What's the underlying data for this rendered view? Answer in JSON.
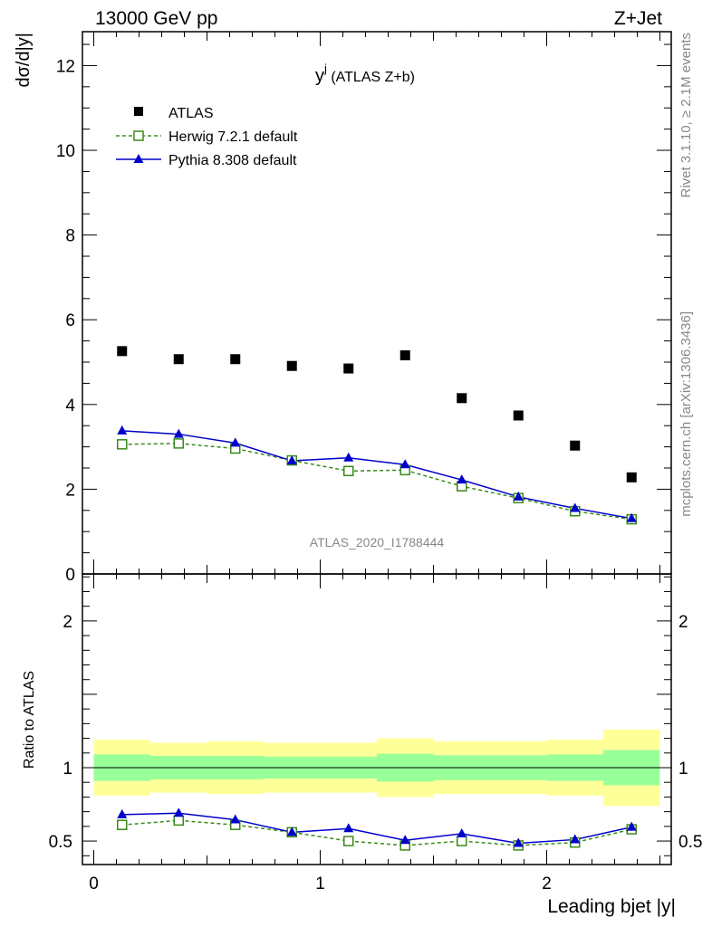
{
  "header": {
    "left": "13000 GeV pp",
    "right": "Z+Jet"
  },
  "side_texts": {
    "rivet": "Rivet 3.1.10, ≥ 2.1M events",
    "mcplots": "mcplots.cern.ch [arXiv:1306.3436]"
  },
  "watermark": "ATLAS_2020_I1788444",
  "plot_title": {
    "main": "y",
    "sup": "j",
    "rest": " (ATLAS Z+b)"
  },
  "colors": {
    "atlas": "#000000",
    "herwig": "#3a8a1a",
    "pythia": "#0000cc",
    "band_inner": "#99ff99",
    "band_outer": "#ffff99"
  },
  "chart_data": [
    {
      "type": "scatter",
      "panel": "main",
      "ylabel": "dσ/d|y|",
      "xlim": [
        -0.05,
        2.55
      ],
      "ylim": [
        0,
        12.8
      ],
      "yticks": [
        0,
        2,
        4,
        6,
        8,
        10,
        12
      ],
      "grid": false,
      "legend": "top-left",
      "x": [
        0.125,
        0.375,
        0.625,
        0.875,
        1.125,
        1.375,
        1.625,
        1.875,
        2.125,
        2.375
      ],
      "x_edges": [
        0,
        0.25,
        0.5,
        0.75,
        1.0,
        1.25,
        1.5,
        1.75,
        2.0,
        2.25,
        2.5
      ],
      "series": [
        {
          "name": "ATLAS",
          "style": "marker",
          "values": [
            5.26,
            5.07,
            5.07,
            4.91,
            4.85,
            5.16,
            4.15,
            3.74,
            3.03,
            2.28
          ]
        },
        {
          "name": "Herwig 7.2.1 default",
          "style": "dashed-open-square",
          "values": [
            3.06,
            3.08,
            2.96,
            2.68,
            2.43,
            2.45,
            2.07,
            1.79,
            1.48,
            1.29
          ]
        },
        {
          "name": "Pythia 8.308 default",
          "style": "solid-triangle",
          "values": [
            3.38,
            3.3,
            3.09,
            2.67,
            2.74,
            2.58,
            2.22,
            1.82,
            1.55,
            1.31
          ]
        }
      ]
    },
    {
      "type": "line",
      "panel": "ratio",
      "ylabel": "Ratio to ATLAS",
      "xlabel": "Leading bjet |y|",
      "xlim": [
        -0.05,
        2.55
      ],
      "ylim": [
        0.34,
        2.32
      ],
      "yticks": [
        0.5,
        1,
        2
      ],
      "xticks": [
        0,
        1,
        2
      ],
      "reference": 1,
      "x": [
        0.125,
        0.375,
        0.625,
        0.875,
        1.125,
        1.375,
        1.625,
        1.875,
        2.125,
        2.375
      ],
      "band_inner": {
        "low": [
          0.91,
          0.92,
          0.92,
          0.925,
          0.925,
          0.905,
          0.915,
          0.915,
          0.91,
          0.88
        ],
        "high": [
          1.09,
          1.08,
          1.08,
          1.075,
          1.075,
          1.095,
          1.085,
          1.085,
          1.09,
          1.12
        ]
      },
      "band_outer": {
        "low": [
          0.81,
          0.83,
          0.82,
          0.83,
          0.83,
          0.8,
          0.82,
          0.82,
          0.81,
          0.74
        ],
        "high": [
          1.19,
          1.17,
          1.18,
          1.17,
          1.17,
          1.2,
          1.18,
          1.18,
          1.19,
          1.26
        ]
      },
      "series": [
        {
          "name": "Herwig 7.2.1 default",
          "values": [
            0.61,
            0.64,
            0.61,
            0.56,
            0.5,
            0.47,
            0.5,
            0.47,
            0.49,
            0.58
          ],
          "errors": [
            0.01,
            0.01,
            0.01,
            0.01,
            0.01,
            0.01,
            0.01,
            0.01,
            0.015,
            0.02
          ]
        },
        {
          "name": "Pythia 8.308 default",
          "values": [
            0.68,
            0.69,
            0.645,
            0.56,
            0.585,
            0.505,
            0.55,
            0.485,
            0.51,
            0.595
          ],
          "errors": [
            0.015,
            0.015,
            0.015,
            0.015,
            0.015,
            0.015,
            0.018,
            0.018,
            0.022,
            0.025
          ]
        }
      ]
    }
  ]
}
